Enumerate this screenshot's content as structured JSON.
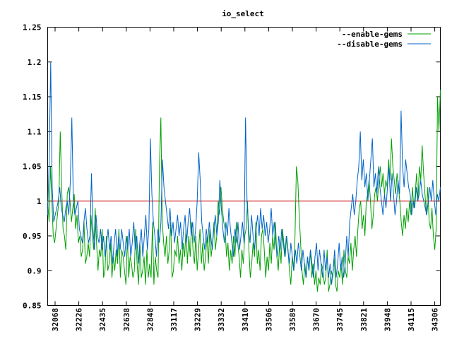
{
  "chart_data": {
    "type": "line",
    "title": "io_select",
    "xlabel": "",
    "ylabel": "",
    "ylim": [
      0.85,
      1.25
    ],
    "yticks": [
      "0.85",
      "0.9",
      "0.95",
      "1",
      "1.05",
      "1.1",
      "1.15",
      "1.2",
      "1.25"
    ],
    "ytick_values": [
      0.85,
      0.9,
      0.95,
      1.0,
      1.05,
      1.1,
      1.15,
      1.2,
      1.25
    ],
    "xticks": [
      "32068",
      "32226",
      "32435",
      "32638",
      "32848",
      "33117",
      "33229",
      "33332",
      "33410",
      "33506",
      "33589",
      "33670",
      "33745",
      "33821",
      "33948",
      "34115",
      "34306"
    ],
    "grid": false,
    "legend_position": "top-right",
    "reference_line": {
      "value": 1.0,
      "color": "#cc0000"
    },
    "series": [
      {
        "name": "--enable-gems",
        "color": "#00a000",
        "values": [
          1.0,
          0.97,
          1.05,
          1.0,
          0.95,
          0.94,
          0.96,
          0.98,
          1.0,
          1.1,
          1.02,
          0.96,
          0.95,
          0.93,
          1.01,
          1.02,
          1.0,
          0.97,
          0.99,
          1.01,
          0.96,
          0.98,
          0.94,
          0.95,
          0.92,
          0.93,
          0.97,
          0.91,
          0.92,
          0.94,
          0.92,
          0.98,
          0.95,
          0.93,
          0.99,
          0.94,
          0.9,
          0.93,
          0.92,
          0.96,
          0.89,
          0.9,
          0.95,
          0.9,
          0.91,
          0.94,
          0.89,
          0.92,
          0.9,
          0.93,
          0.91,
          0.96,
          0.89,
          0.93,
          0.92,
          0.9,
          0.88,
          0.95,
          0.89,
          0.92,
          0.91,
          0.89,
          0.9,
          0.96,
          0.91,
          0.88,
          0.94,
          0.89,
          0.9,
          0.92,
          0.88,
          0.93,
          0.89,
          0.91,
          0.89,
          0.97,
          0.88,
          0.92,
          0.9,
          0.89,
          1.05,
          1.12,
          0.97,
          0.94,
          0.92,
          0.95,
          0.91,
          0.93,
          0.97,
          0.89,
          0.9,
          0.93,
          0.92,
          0.95,
          0.91,
          0.93,
          0.9,
          0.94,
          0.92,
          0.96,
          0.91,
          0.95,
          0.92,
          0.97,
          0.93,
          0.91,
          0.95,
          0.9,
          0.93,
          0.96,
          0.91,
          0.94,
          0.9,
          0.92,
          0.95,
          0.91,
          0.96,
          0.92,
          0.94,
          0.97,
          0.93,
          0.95,
          1.0,
          0.98,
          1.02,
          0.99,
          0.97,
          0.96,
          0.92,
          0.94,
          0.9,
          0.93,
          0.91,
          0.95,
          0.92,
          0.97,
          0.94,
          0.92,
          0.89,
          0.93,
          0.91,
          0.95,
          0.96,
          1.0,
          0.93,
          0.89,
          0.91,
          0.94,
          0.92,
          0.97,
          0.91,
          0.93,
          0.9,
          0.95,
          0.96,
          0.93,
          0.89,
          0.92,
          0.9,
          0.94,
          0.91,
          0.95,
          0.93,
          0.97,
          0.92,
          0.9,
          0.94,
          0.91,
          0.96,
          0.94,
          0.92,
          0.95,
          0.93,
          0.9,
          0.88,
          0.92,
          0.9,
          0.95,
          1.05,
          1.03,
          0.98,
          0.94,
          0.9,
          0.88,
          0.91,
          0.89,
          0.92,
          0.9,
          0.93,
          0.89,
          0.91,
          0.88,
          0.9,
          0.87,
          0.89,
          0.88,
          0.91,
          0.9,
          0.88,
          0.89,
          0.93,
          0.87,
          0.88,
          0.9,
          0.89,
          0.92,
          0.88,
          0.87,
          0.9,
          0.89,
          0.91,
          0.88,
          0.93,
          0.9,
          0.89,
          0.92,
          0.91,
          0.94,
          0.9,
          0.93,
          0.95,
          0.92,
          0.96,
          0.99,
          1.0,
          0.96,
          0.98,
          0.95,
          1.0,
          1.01,
          1.03,
          1.0,
          0.96,
          0.98,
          1.01,
          1.02,
          1.0,
          1.03,
          1.05,
          1.02,
          1.04,
          1.01,
          1.03,
          1.02,
          1.06,
          1.03,
          1.09,
          1.05,
          1.03,
          1.01,
          1.04,
          1.02,
          1.0,
          0.97,
          0.95,
          0.98,
          0.96,
          0.99,
          0.97,
          1.0,
          0.98,
          1.02,
          0.99,
          1.01,
          1.04,
          1.0,
          1.05,
          1.03,
          1.08,
          1.04,
          1.01,
          0.98,
          1.02,
          0.97,
          0.96,
          0.99,
          0.95,
          0.93,
          0.96,
          1.15,
          1.1,
          1.16
        ]
      },
      {
        "name": "--disable-gems",
        "color": "#0064c8",
        "values": [
          0.98,
          1.06,
          1.2,
          1.02,
          0.97,
          0.98,
          0.99,
          1.0,
          1.02,
          0.99,
          0.98,
          0.97,
          0.99,
          1.0,
          0.98,
          1.03,
          1.12,
          1.0,
          0.98,
          0.99,
          1.0,
          0.96,
          0.95,
          0.94,
          0.97,
          0.99,
          0.96,
          0.94,
          0.95,
          1.04,
          0.96,
          0.93,
          0.98,
          0.95,
          0.94,
          0.96,
          0.93,
          0.95,
          0.92,
          0.94,
          0.96,
          0.93,
          0.95,
          0.91,
          0.94,
          0.96,
          0.92,
          0.95,
          0.93,
          0.96,
          0.94,
          0.92,
          0.95,
          0.93,
          0.96,
          0.92,
          0.94,
          0.97,
          0.93,
          0.95,
          0.91,
          0.94,
          0.96,
          0.92,
          0.95,
          0.98,
          0.93,
          0.96,
          1.09,
          1.01,
          0.97,
          0.95,
          0.92,
          0.96,
          0.94,
          0.97,
          1.06,
          1.02,
          1.0,
          0.98,
          0.96,
          0.99,
          0.95,
          0.97,
          0.94,
          0.96,
          0.98,
          0.95,
          0.97,
          0.93,
          0.96,
          0.98,
          0.94,
          0.97,
          0.99,
          0.95,
          0.97,
          0.94,
          0.96,
          1.0,
          1.07,
          1.03,
          0.97,
          0.95,
          0.93,
          0.96,
          0.94,
          0.97,
          0.95,
          0.93,
          0.96,
          0.98,
          0.95,
          0.97,
          1.03,
          0.99,
          0.96,
          0.94,
          0.97,
          0.95,
          0.99,
          0.96,
          0.94,
          0.92,
          0.96,
          0.94,
          0.97,
          0.93,
          0.95,
          0.97,
          0.94,
          1.12,
          1.0,
          0.96,
          0.94,
          0.98,
          0.95,
          0.93,
          0.96,
          0.98,
          0.95,
          0.99,
          0.96,
          0.98,
          0.95,
          0.97,
          0.94,
          0.96,
          0.99,
          0.95,
          0.97,
          0.94,
          0.92,
          0.95,
          0.93,
          0.96,
          0.94,
          0.92,
          0.95,
          0.93,
          0.91,
          0.94,
          0.92,
          0.9,
          0.93,
          0.91,
          0.94,
          0.92,
          0.9,
          0.93,
          0.91,
          0.89,
          0.92,
          0.9,
          0.93,
          0.91,
          0.89,
          0.92,
          0.94,
          0.9,
          0.93,
          0.91,
          0.89,
          0.93,
          0.9,
          0.92,
          0.89,
          0.91,
          0.88,
          0.9,
          0.93,
          0.89,
          0.91,
          0.94,
          0.9,
          0.92,
          0.89,
          0.91,
          0.95,
          0.92,
          0.97,
          0.99,
          1.01,
          0.98,
          1.0,
          1.03,
          1.05,
          1.1,
          1.03,
          1.06,
          1.02,
          1.04,
          1.0,
          1.03,
          1.06,
          1.09,
          1.02,
          1.04,
          1.01,
          1.05,
          1.02,
          1.0,
          0.98,
          1.01,
          0.99,
          1.02,
          1.05,
          1.0,
          1.04,
          1.01,
          0.98,
          1.0,
          1.03,
          1.01,
          1.13,
          1.05,
          1.02,
          1.06,
          1.04,
          1.02,
          1.01,
          0.98,
          1.0,
          0.99,
          1.02,
          1.0,
          1.01,
          1.03,
          1.01,
          1.0,
          0.99,
          0.98,
          1.0,
          1.02,
          1.0,
          1.03,
          1.0,
          0.98,
          1.01,
          1.0,
          1.02
        ]
      }
    ]
  }
}
